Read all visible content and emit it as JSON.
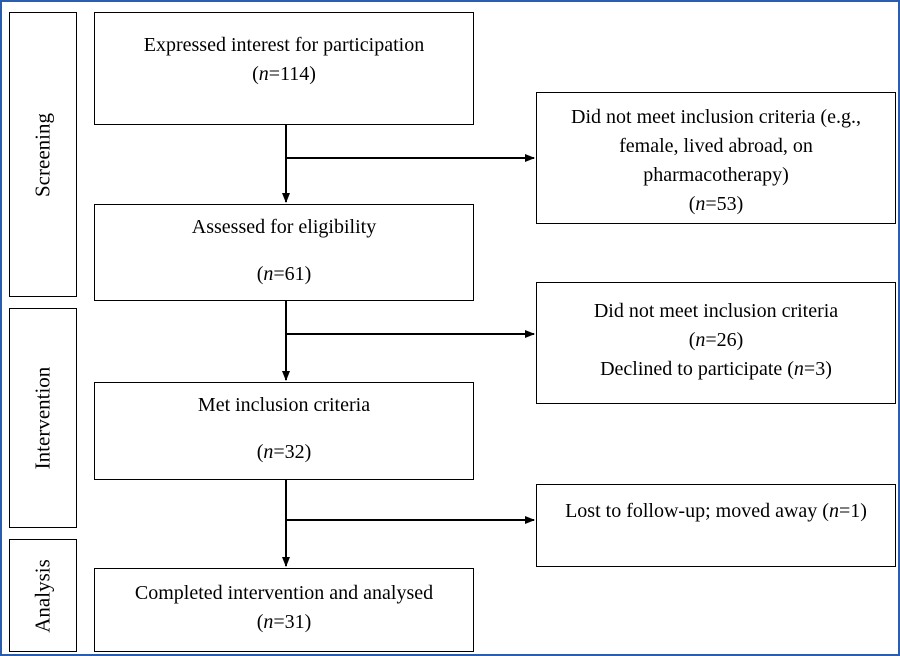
{
  "phases": {
    "screening": "Screening",
    "intervention": "Intervention",
    "analysis": "Analysis"
  },
  "boxes": {
    "expressed_interest": {
      "line1": "Expressed interest for participation",
      "n_label": "n",
      "n_value": "=114)"
    },
    "excluded_1": {
      "line1": "Did not meet inclusion criteria (e.g.,",
      "line2": "female, lived abroad, on",
      "line3": "pharmacotherapy)",
      "n_label": "n",
      "n_value": "=53)"
    },
    "assessed": {
      "line1": "Assessed for eligibility",
      "n_label": "n",
      "n_value": "=61)"
    },
    "excluded_2": {
      "line1": "Did not meet inclusion criteria",
      "n_label": "n",
      "n_value": "=26)",
      "line3_prefix": "Declined to participate (",
      "line3_n_label": "n",
      "line3_n_value": "=3)"
    },
    "met_criteria": {
      "line1": "Met inclusion criteria",
      "n_label": "n",
      "n_value": "=32)"
    },
    "lost": {
      "line1_prefix": "Lost to follow-up; moved away (",
      "n_label": "n",
      "n_value": "=1)"
    },
    "completed": {
      "line1": "Completed intervention and analysed",
      "n_label": "n",
      "n_value": "=31)"
    }
  }
}
